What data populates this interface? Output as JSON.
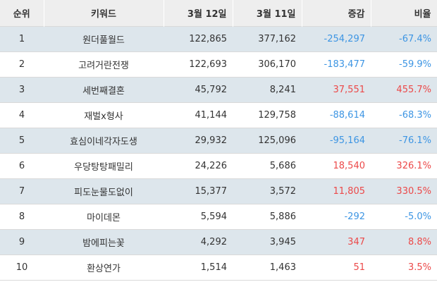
{
  "colors": {
    "header_bg": "#eeeeee",
    "stripe_bg": "#dde6ec",
    "negative": "#3d95e3",
    "positive": "#ec4949"
  },
  "table": {
    "headers": {
      "rank": "순위",
      "keyword": "키워드",
      "date1": "3월 12일",
      "date2": "3월 11일",
      "diff": "증감",
      "ratio": "비율"
    },
    "rows": [
      {
        "rank": "1",
        "keyword": "원더풀월드",
        "date1": "122,865",
        "date2": "377,162",
        "diff": "-254,297",
        "ratio": "-67.4%",
        "trend": "neg"
      },
      {
        "rank": "2",
        "keyword": "고려거란전쟁",
        "date1": "122,693",
        "date2": "306,170",
        "diff": "-183,477",
        "ratio": "-59.9%",
        "trend": "neg"
      },
      {
        "rank": "3",
        "keyword": "세번째결혼",
        "date1": "45,792",
        "date2": "8,241",
        "diff": "37,551",
        "ratio": "455.7%",
        "trend": "pos"
      },
      {
        "rank": "4",
        "keyword": "재벌x형사",
        "date1": "41,144",
        "date2": "129,758",
        "diff": "-88,614",
        "ratio": "-68.3%",
        "trend": "neg"
      },
      {
        "rank": "5",
        "keyword": "효심이네각자도생",
        "date1": "29,932",
        "date2": "125,096",
        "diff": "-95,164",
        "ratio": "-76.1%",
        "trend": "neg"
      },
      {
        "rank": "6",
        "keyword": "우당탕탕패밀리",
        "date1": "24,226",
        "date2": "5,686",
        "diff": "18,540",
        "ratio": "326.1%",
        "trend": "pos"
      },
      {
        "rank": "7",
        "keyword": "피도눈물도없이",
        "date1": "15,377",
        "date2": "3,572",
        "diff": "11,805",
        "ratio": "330.5%",
        "trend": "pos"
      },
      {
        "rank": "8",
        "keyword": "마이데몬",
        "date1": "5,594",
        "date2": "5,886",
        "diff": "-292",
        "ratio": "-5.0%",
        "trend": "neg"
      },
      {
        "rank": "9",
        "keyword": "밤에피는꽃",
        "date1": "4,292",
        "date2": "3,945",
        "diff": "347",
        "ratio": "8.8%",
        "trend": "pos"
      },
      {
        "rank": "10",
        "keyword": "환상연가",
        "date1": "1,514",
        "date2": "1,463",
        "diff": "51",
        "ratio": "3.5%",
        "trend": "pos"
      }
    ]
  }
}
